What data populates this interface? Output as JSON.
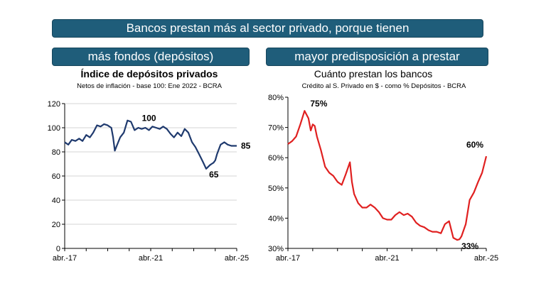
{
  "banners": {
    "main": "Bancos prestan más al sector privado, porque tienen",
    "left": "más fondos (depósitos)",
    "right": "mayor predisposición a prestar"
  },
  "colors": {
    "banner": "#1f5d7a",
    "left_series": "#1f3a6e",
    "right_series": "#e02020"
  },
  "chart_data": [
    {
      "type": "line",
      "title": "Índice de depósitos privados",
      "subtitle": "Netos de inflación - base 100: Ene 2022 - BCRA",
      "ylim": [
        0,
        120
      ],
      "yticks": [
        "0",
        "20",
        "40",
        "60",
        "80",
        "100",
        "120"
      ],
      "xticks": [
        "abr.-17",
        "abr.-21",
        "abr.-25"
      ],
      "x_range": [
        2017.25,
        2025.25
      ],
      "grid": true,
      "annotations": [
        "100",
        "65",
        "85"
      ],
      "series": [
        {
          "x": [
            2017.25,
            2017.42,
            2017.58,
            2017.75,
            2017.92,
            2018.08,
            2018.25,
            2018.42,
            2018.58,
            2018.75,
            2018.92,
            2019.08,
            2019.25,
            2019.33,
            2019.42,
            2019.5,
            2019.58,
            2019.67,
            2019.83,
            2020.0,
            2020.17,
            2020.33,
            2020.5,
            2020.67,
            2020.83,
            2021.0,
            2021.17,
            2021.33,
            2021.5,
            2021.67,
            2021.83,
            2022.0,
            2022.17,
            2022.33,
            2022.5,
            2022.67,
            2022.83,
            2023.0,
            2023.17,
            2023.33,
            2023.5,
            2023.67,
            2023.83,
            2024.0,
            2024.08,
            2024.17,
            2024.25,
            2024.33,
            2024.5,
            2024.67,
            2024.83,
            2025.0,
            2025.25
          ],
          "y": [
            88,
            86,
            90,
            89,
            91,
            89,
            94,
            92,
            96,
            102,
            101,
            103,
            102,
            101,
            100,
            92,
            81,
            85,
            92,
            96,
            106,
            105,
            98,
            100,
            99,
            100,
            98,
            101,
            100,
            99,
            101,
            99,
            95,
            92,
            96,
            93,
            99,
            96,
            88,
            84,
            78,
            72,
            66,
            69,
            70,
            71,
            73,
            78,
            86,
            88,
            86,
            85,
            85
          ]
        }
      ]
    },
    {
      "type": "line",
      "title": "Cuánto prestan los bancos",
      "subtitle": "Crédito al S. Privado en $ - como % Depósitos - BCRA",
      "ylim": [
        30,
        80
      ],
      "yticks": [
        "30%",
        "40%",
        "50%",
        "60%",
        "70%",
        "80%"
      ],
      "xticks": [
        "abr.-17",
        "abr.-21",
        "abr.-25"
      ],
      "x_range": [
        2017.25,
        2025.25
      ],
      "grid": false,
      "annotations": [
        "75%",
        "60%",
        "33%"
      ],
      "series": [
        {
          "x": [
            2017.25,
            2017.42,
            2017.58,
            2017.75,
            2017.92,
            2018.08,
            2018.17,
            2018.25,
            2018.33,
            2018.42,
            2018.58,
            2018.75,
            2018.92,
            2019.08,
            2019.25,
            2019.42,
            2019.58,
            2019.75,
            2019.83,
            2019.92,
            2020.08,
            2020.25,
            2020.42,
            2020.58,
            2020.75,
            2020.92,
            2021.08,
            2021.25,
            2021.42,
            2021.58,
            2021.75,
            2021.92,
            2022.08,
            2022.25,
            2022.42,
            2022.58,
            2022.75,
            2022.92,
            2023.08,
            2023.25,
            2023.42,
            2023.58,
            2023.75,
            2023.92,
            2024.08,
            2024.17,
            2024.25,
            2024.42,
            2024.58,
            2024.75,
            2024.92,
            2025.08,
            2025.25
          ],
          "y": [
            64.5,
            65.5,
            67,
            71,
            75.5,
            73,
            69,
            71,
            70.5,
            67,
            62.5,
            57,
            55,
            54,
            52,
            51,
            54.5,
            58.5,
            52,
            48,
            45,
            43.5,
            43.5,
            44.5,
            43.5,
            42,
            40,
            39.5,
            39.5,
            41,
            42,
            41,
            41.5,
            40.5,
            38.5,
            37.5,
            37,
            36,
            35.5,
            35.5,
            35,
            38,
            39,
            33.5,
            32.8,
            33,
            34,
            38,
            46,
            48.5,
            52,
            55,
            60.5
          ]
        }
      ]
    }
  ]
}
